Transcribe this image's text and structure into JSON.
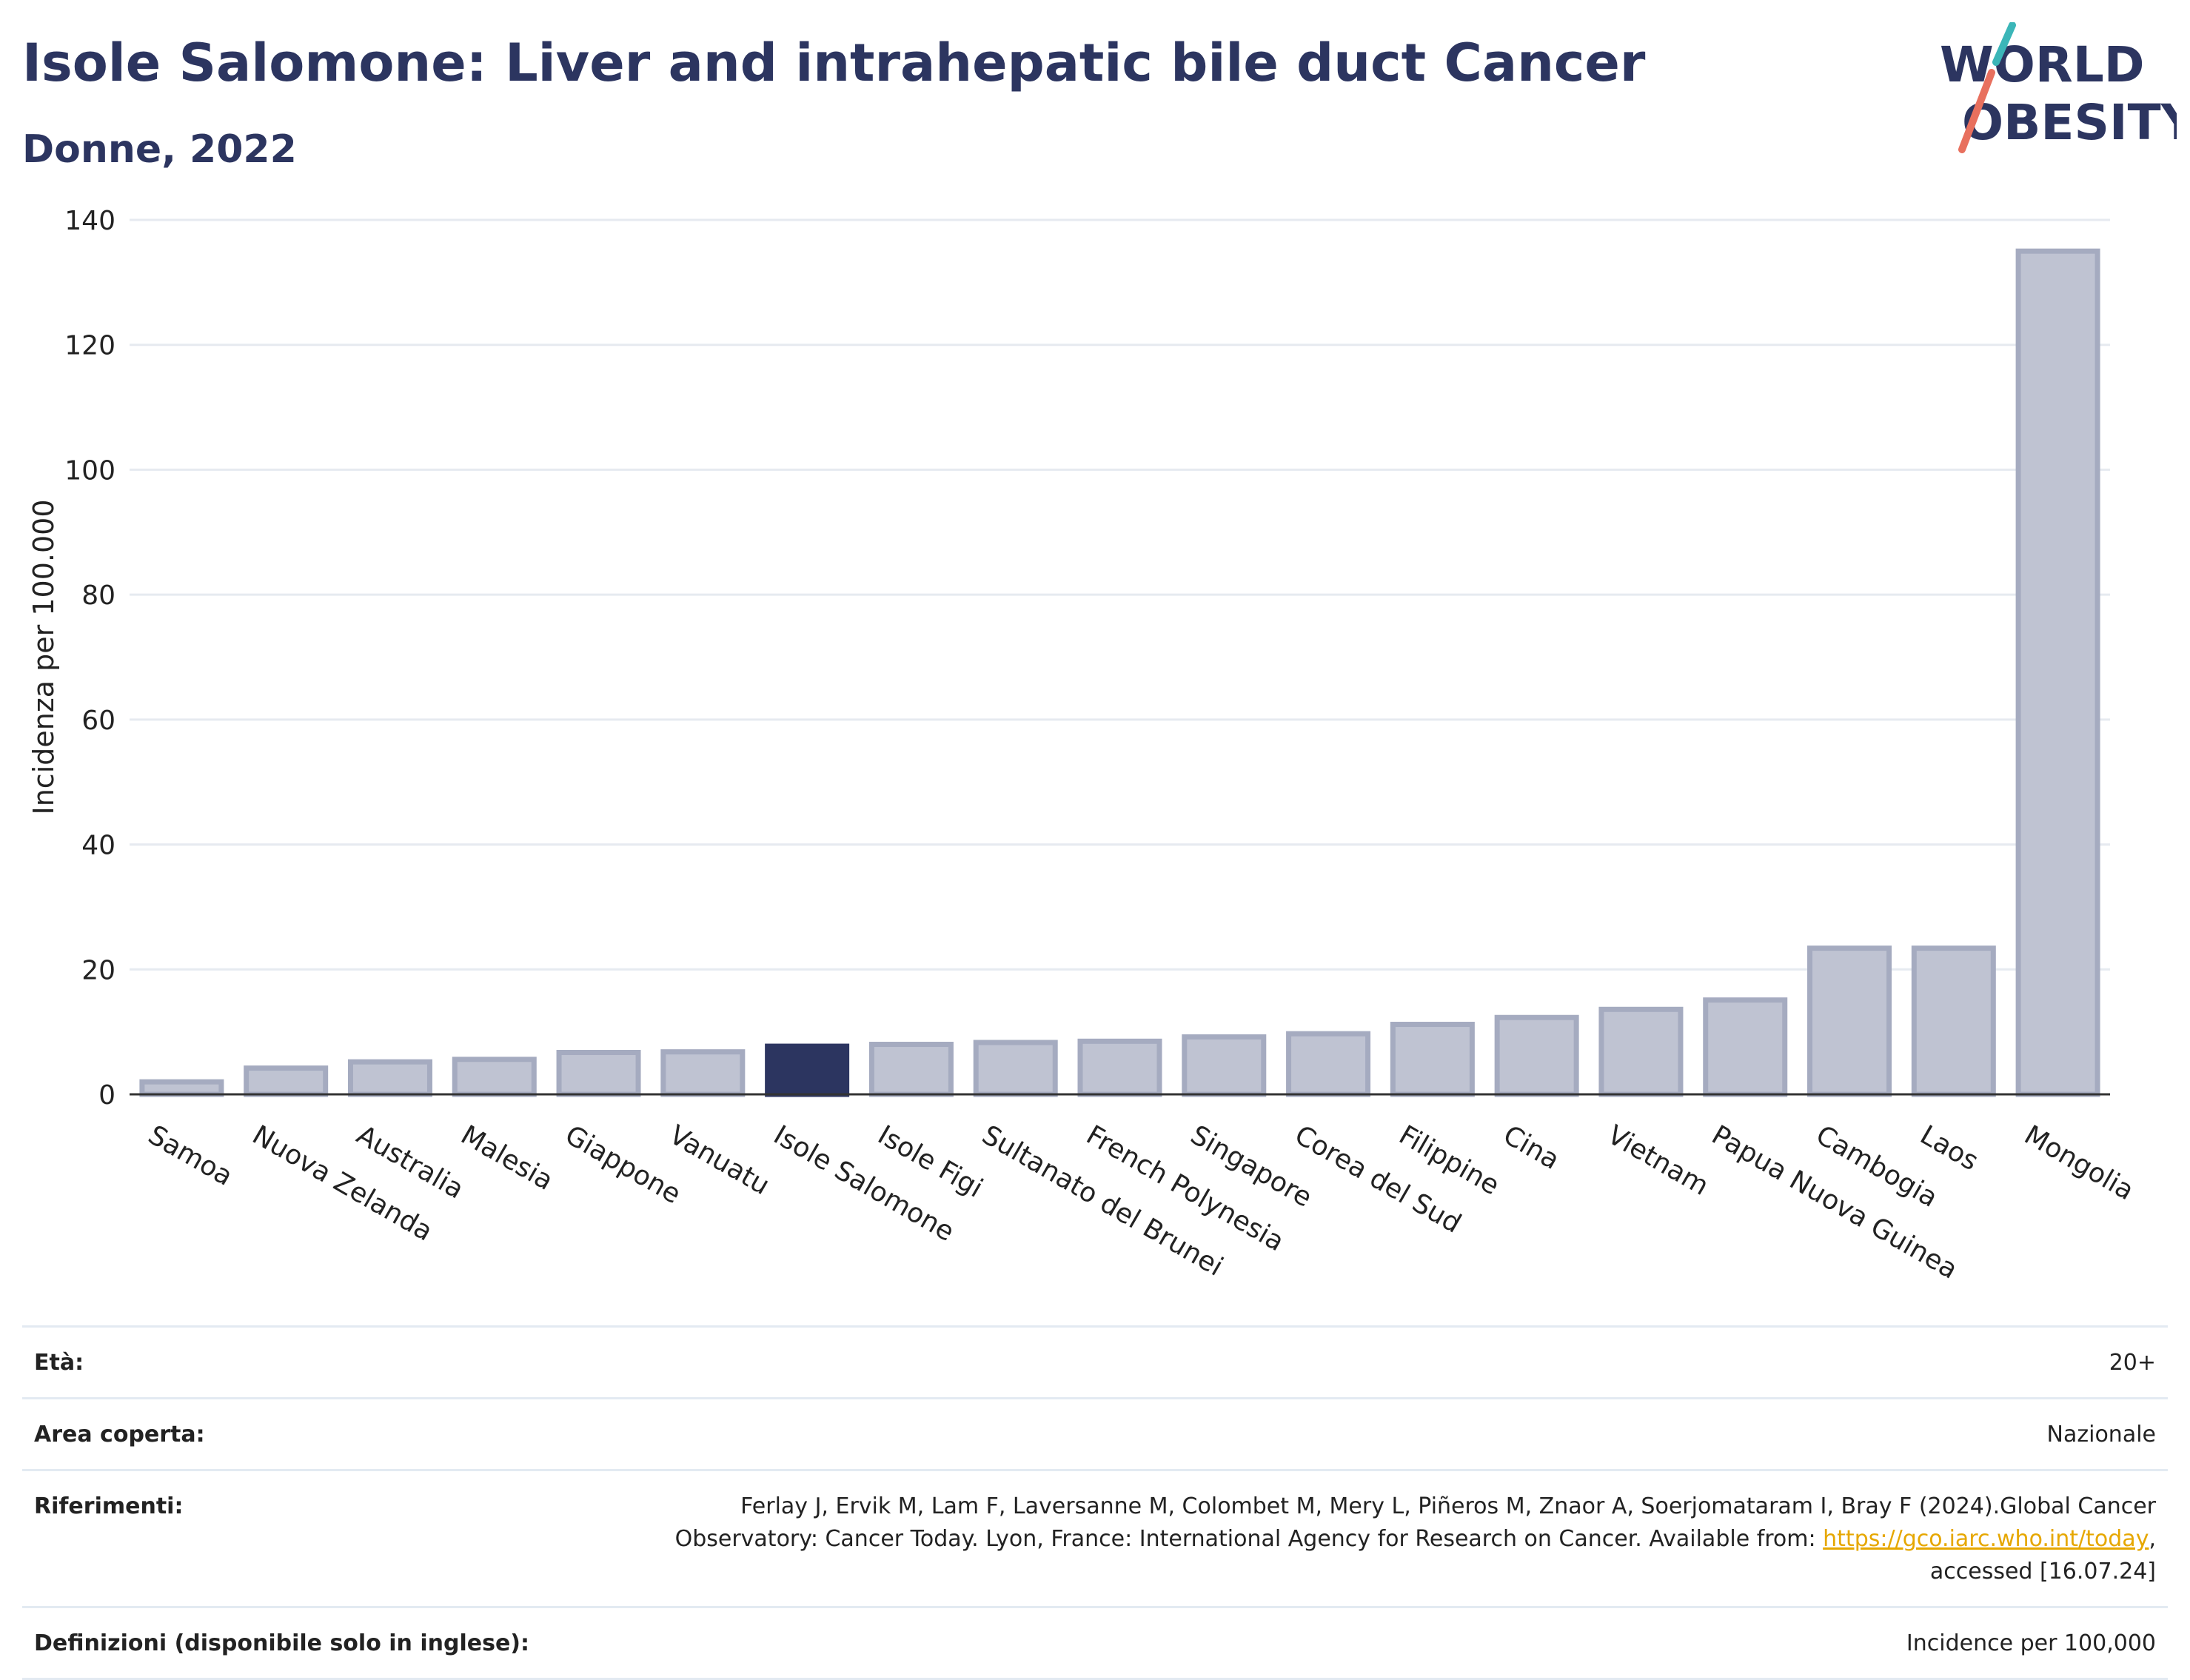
{
  "header": {
    "title": "Isole Salomone: Liver and intrahepatic bile duct Cancer",
    "subtitle": "Donne, 2022"
  },
  "logo": {
    "line1": "WORLD",
    "line2": "OBESITY",
    "accent_colors": [
      "#3bb6b8",
      "#e8705e"
    ]
  },
  "colors": {
    "default_bar": "#bfc3d2",
    "default_bar_border": "#a5abc0",
    "highlight_bar": "#2c3560",
    "title": "#2c3560",
    "grid": "#e6eaf0"
  },
  "chart_data": {
    "type": "bar",
    "title": "Isole Salomone: Liver and intrahepatic bile duct Cancer",
    "subtitle": "Donne, 2022",
    "xlabel": "",
    "ylabel": "Incidenza per 100.000",
    "ylim": [
      0,
      140
    ],
    "yticks": [
      0,
      20,
      40,
      60,
      80,
      100,
      120,
      140
    ],
    "grid": true,
    "categories": [
      "Samoa",
      "Nuova Zelanda",
      "Australia",
      "Malesia",
      "Giappone",
      "Vanuatu",
      "Isole Salomone",
      "Isole Figi",
      "Sultanato del Brunei",
      "French Polynesia",
      "Singapore",
      "Corea del Sud",
      "Filippine",
      "Cina",
      "Vietnam",
      "Papua Nuova Guinea",
      "Cambogia",
      "Laos",
      "Mongolia"
    ],
    "values": [
      2.0,
      4.2,
      5.2,
      5.6,
      6.7,
      6.8,
      7.7,
      8.0,
      8.3,
      8.5,
      9.2,
      9.7,
      11.2,
      12.3,
      13.6,
      15.1,
      23.4,
      23.4,
      135.0
    ],
    "highlight": "Isole Salomone"
  },
  "info": {
    "rows": [
      {
        "label": "Età:",
        "value": "20+"
      },
      {
        "label": "Area coperta:",
        "value": "Nazionale"
      },
      {
        "label": "Riferimenti:",
        "value": "Ferlay J, Ervik M, Lam F, Laversanne M, Colombet M, Mery L, Piñeros M, Znaor A, Soerjomataram I, Bray F (2024).Global Cancer Observatory: Cancer Today. Lyon, France: International Agency for Research on Cancer. Available from: ",
        "link": "https://gco.iarc.who.int/today",
        "suffix": ", accessed [16.07.24]"
      },
      {
        "label": "Definizioni (disponibile solo in inglese):",
        "value": "Incidence per 100,000"
      }
    ]
  }
}
